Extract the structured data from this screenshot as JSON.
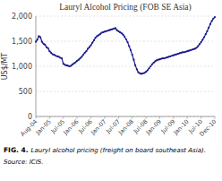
{
  "chart_data": {
    "type": "line",
    "title": "Lauryl Alcohol Pricing (FOB SE Asia)",
    "y_label": "US$/MT",
    "annotations": [
      "FIG. 4.",
      "Lauryl alcohol pricing (freight on board southeast Asia).",
      "Source: ICIS."
    ],
    "categories": [
      "Aug-04",
      null,
      null,
      null,
      null,
      null,
      null,
      null,
      null,
      "Jan-05",
      null,
      null,
      null,
      null,
      null,
      null,
      null,
      null,
      "Jul-05",
      null,
      null,
      null,
      null,
      null,
      null,
      null,
      null,
      "Jan-06",
      null,
      null,
      null,
      null,
      null,
      null,
      null,
      null,
      "Jul-06",
      null,
      null,
      null,
      null,
      null,
      null,
      null,
      null,
      "Jan-07",
      null,
      null,
      null,
      null,
      null,
      null,
      null,
      null,
      "Jul-07",
      null,
      null,
      null,
      null,
      null,
      null,
      null,
      null,
      "Jan-08",
      null,
      null,
      null,
      null,
      null,
      null,
      null,
      null,
      "Jul-08",
      null,
      null,
      null,
      null,
      null,
      null,
      null,
      null,
      "Jan-09",
      null,
      null,
      null,
      null,
      null,
      null,
      null,
      null,
      "Jul-09",
      null,
      null,
      null,
      null,
      null,
      null,
      null,
      null,
      "Jan-10",
      null,
      null,
      null,
      null,
      null,
      null,
      null,
      null,
      "Jul-10",
      null,
      null,
      null,
      null,
      null,
      null,
      null,
      null,
      "Dec-10"
    ],
    "values": [
      1490,
      1530,
      1600,
      1580,
      1490,
      1450,
      1430,
      1380,
      1360,
      1300,
      1270,
      1240,
      1230,
      1210,
      1200,
      1190,
      1170,
      1160,
      1050,
      1030,
      1020,
      1010,
      1000,
      1010,
      1040,
      1060,
      1080,
      1110,
      1130,
      1160,
      1190,
      1230,
      1270,
      1300,
      1350,
      1380,
      1420,
      1470,
      1520,
      1570,
      1600,
      1620,
      1640,
      1670,
      1680,
      1690,
      1700,
      1710,
      1720,
      1730,
      1740,
      1750,
      1760,
      1720,
      1700,
      1680,
      1660,
      1630,
      1590,
      1540,
      1480,
      1400,
      1320,
      1230,
      1130,
      1020,
      940,
      880,
      860,
      850,
      860,
      870,
      890,
      920,
      960,
      1000,
      1040,
      1070,
      1100,
      1120,
      1130,
      1140,
      1150,
      1160,
      1160,
      1170,
      1180,
      1190,
      1200,
      1210,
      1220,
      1230,
      1240,
      1250,
      1260,
      1270,
      1280,
      1280,
      1290,
      1300,
      1310,
      1320,
      1330,
      1340,
      1350,
      1370,
      1400,
      1440,
      1480,
      1530,
      1580,
      1640,
      1700,
      1770,
      1840,
      1900,
      1950,
      1980
    ],
    "color": "#1a1a8c",
    "marker": "circle",
    "ylim": [
      0,
      2000
    ],
    "yticks": [
      0,
      500,
      {
        "value": 1000,
        "label": "1,000"
      },
      {
        "value": 1500,
        "label": "1,500"
      },
      {
        "value": 2000,
        "label": "2,000"
      }
    ],
    "grid": true
  }
}
